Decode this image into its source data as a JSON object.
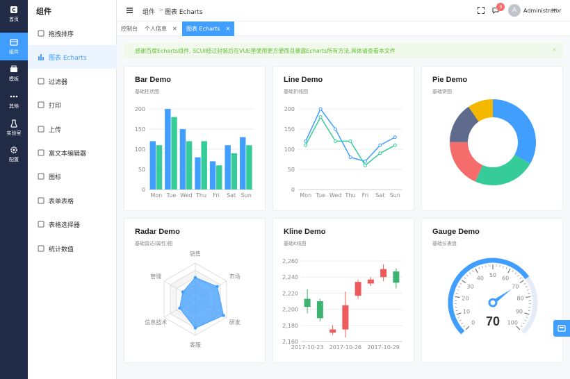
{
  "rail": {
    "items": [
      {
        "label": "首页",
        "icon": "home-icon"
      },
      {
        "label": "组件",
        "icon": "components-icon",
        "active": true
      },
      {
        "label": "模板",
        "icon": "template-icon"
      },
      {
        "label": "其他",
        "icon": "more-icon"
      },
      {
        "label": "实验室",
        "icon": "lab-icon"
      },
      {
        "label": "配置",
        "icon": "settings-icon"
      }
    ]
  },
  "side": {
    "title": "组件",
    "items": [
      {
        "label": "拖拽排序",
        "icon": "drag-icon"
      },
      {
        "label": "图表 Echarts",
        "icon": "chart-icon",
        "active": true
      },
      {
        "label": "过滤器",
        "icon": "filter-icon"
      },
      {
        "label": "打印",
        "icon": "printer-icon"
      },
      {
        "label": "上传",
        "icon": "upload-icon"
      },
      {
        "label": "富文本编辑器",
        "icon": "edit-icon"
      },
      {
        "label": "图标",
        "icon": "book-icon"
      },
      {
        "label": "表单表格",
        "icon": "copy-icon"
      },
      {
        "label": "表格选择器",
        "icon": "table-icon"
      },
      {
        "label": "统计数值",
        "icon": "stats-icon"
      }
    ]
  },
  "header": {
    "breadcrumb": [
      "组件",
      "图表 Echarts"
    ],
    "separator": ">",
    "badge_count": "3",
    "avatar_letter": "A",
    "username": "Administrator"
  },
  "tabs": [
    {
      "label": "控制台",
      "closable": false
    },
    {
      "label": "个人信息",
      "closable": true
    },
    {
      "label": "图表 Echarts",
      "closable": true,
      "active": true
    }
  ],
  "alert": {
    "text": "感谢百度Echarts组件, SCUI经过封装后在VUE里使用更方便而且暴露Echarts所有方法,具体请查看本文件",
    "close": "×"
  },
  "colors": {
    "primary": "#409eff",
    "green": "#36cc99",
    "rail_bg": "#222b45",
    "red": "#ec5b5b",
    "kline_up": "#ec5b5b",
    "kline_down": "#3cb371"
  },
  "cards": {
    "bar": {
      "title": "Bar Demo",
      "subtitle": "基础柱状图"
    },
    "line": {
      "title": "Line Demo",
      "subtitle": "基础折线图"
    },
    "pie": {
      "title": "Pie Demo",
      "subtitle": "基础饼图"
    },
    "radar": {
      "title": "Radar Demo",
      "subtitle": "基础雷达(属性)图"
    },
    "kline": {
      "title": "Kline Demo",
      "subtitle": "基础K线图"
    },
    "gauge": {
      "title": "Gauge Demo",
      "subtitle": "基础仪表盘"
    }
  },
  "chart_data": [
    {
      "id": "bar",
      "type": "bar",
      "categories": [
        "Mon",
        "Tue",
        "Wed",
        "Thu",
        "Fri",
        "Sat",
        "Sun"
      ],
      "series": [
        {
          "values": [
            120,
            200,
            150,
            80,
            70,
            110,
            130
          ],
          "color": "#409eff"
        },
        {
          "values": [
            110,
            180,
            120,
            120,
            60,
            90,
            110
          ],
          "color": "#36cc99"
        }
      ],
      "ylim": [
        0,
        200
      ],
      "yticks": [
        0,
        50,
        100,
        150,
        200
      ]
    },
    {
      "id": "line",
      "type": "line",
      "categories": [
        "Mon",
        "Tue",
        "Wed",
        "Thu",
        "Fri",
        "Sat",
        "Sun"
      ],
      "series": [
        {
          "values": [
            120,
            200,
            150,
            80,
            70,
            110,
            130
          ],
          "color": "#409eff"
        },
        {
          "values": [
            110,
            180,
            120,
            120,
            60,
            90,
            110
          ],
          "color": "#36cc99"
        }
      ],
      "ylim": [
        0,
        200
      ],
      "yticks": [
        0,
        50,
        100,
        150,
        200
      ]
    },
    {
      "id": "pie",
      "type": "pie",
      "donut": true,
      "slices": [
        {
          "value": 1048,
          "color": "#409eff"
        },
        {
          "value": 735,
          "color": "#36cc99"
        },
        {
          "value": 580,
          "color": "#f56c6c"
        },
        {
          "value": 484,
          "color": "#5f6b8c"
        },
        {
          "value": 300,
          "color": "#f5b800"
        }
      ]
    },
    {
      "id": "radar",
      "type": "radar",
      "indicators": [
        "销售",
        "市场",
        "研发",
        "客服",
        "信息技术",
        "管理"
      ],
      "max": 100,
      "values": [
        60,
        70,
        90,
        80,
        50,
        40
      ],
      "color": "#409eff"
    },
    {
      "id": "kline",
      "type": "candlestick",
      "x": [
        "2017-10-23",
        "2017-10-24",
        "2017-10-25",
        "2017-10-26",
        "2017-10-27",
        "2017-10-28",
        "2017-10-29",
        "2017-10-30"
      ],
      "xticks": [
        "2017-10-23",
        "2017-10-26",
        "2017-10-29"
      ],
      "candles": [
        [
          2213,
          2203,
          2195,
          2225
        ],
        [
          2210,
          2189,
          2185,
          2213
        ],
        [
          2171,
          2175,
          2168,
          2180
        ],
        [
          2175,
          2205,
          2165,
          2222
        ],
        [
          2217,
          2234,
          2213,
          2237
        ],
        [
          2232,
          2237,
          2229,
          2240
        ],
        [
          2240,
          2250,
          2235,
          2256
        ],
        [
          2247,
          2233,
          2226,
          2251
        ]
      ],
      "ylim": [
        2160,
        2260
      ],
      "yticks": [
        "2,160",
        "2,180",
        "2,200",
        "2,220",
        "2,240",
        "2,260"
      ]
    },
    {
      "id": "gauge",
      "type": "gauge",
      "value": 70,
      "min": 0,
      "max": 100,
      "ticks": [
        0,
        10,
        20,
        30,
        40,
        50,
        60,
        70,
        80,
        90,
        100
      ],
      "color": "#409eff"
    }
  ]
}
